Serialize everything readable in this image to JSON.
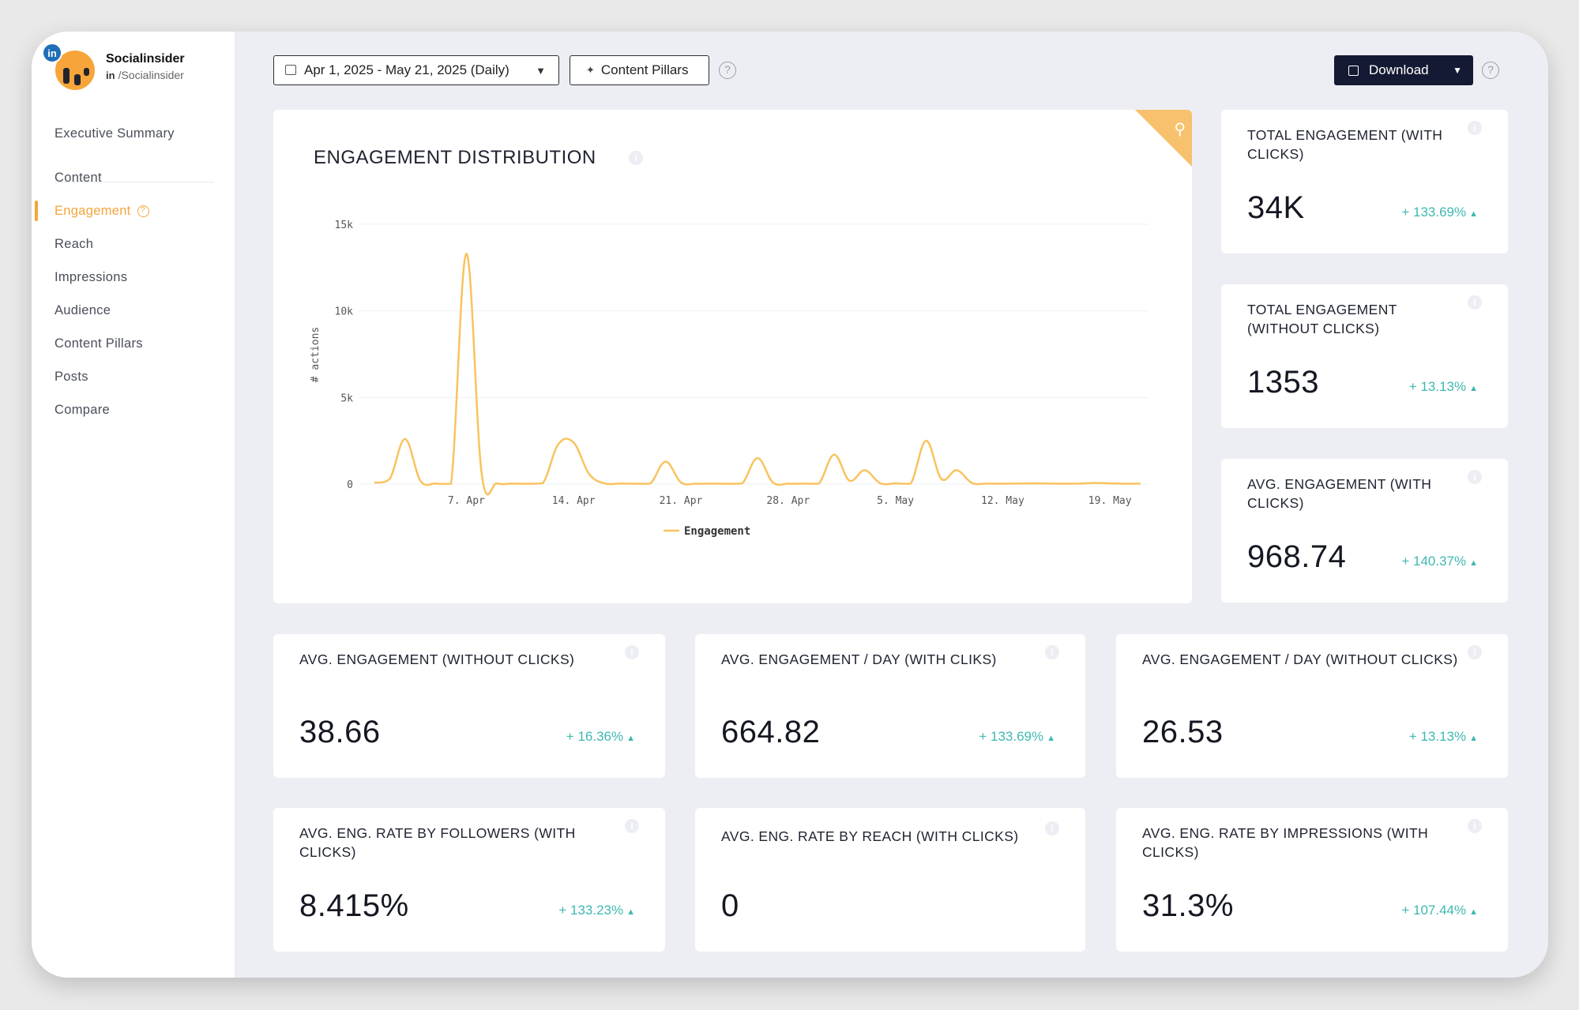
{
  "brand": {
    "name": "Socialinsider",
    "network_badge": "in",
    "handle_prefix": "in",
    "handle": "/Socialinsider"
  },
  "nav": {
    "items": [
      {
        "label": "Executive Summary"
      },
      {
        "label": "Content"
      },
      {
        "label": "Engagement",
        "help": "?"
      },
      {
        "label": "Reach"
      },
      {
        "label": "Impressions"
      },
      {
        "label": "Audience"
      },
      {
        "label": "Content Pillars"
      },
      {
        "label": "Posts"
      },
      {
        "label": "Compare"
      }
    ],
    "active": "Engagement"
  },
  "toolbar": {
    "date_range": "Apr 1, 2025 - May 21, 2025 (Daily)",
    "pillars_label": "Content Pillars",
    "download_label": "Download",
    "help": "?"
  },
  "chart": {
    "title": "ENGAGEMENT DISTRIBUTION",
    "info": "i"
  },
  "chart_data": {
    "type": "line",
    "title": "ENGAGEMENT DISTRIBUTION",
    "xlabel": "",
    "ylabel": "# actions",
    "ylim": [
      0,
      15000
    ],
    "y_ticks": [
      "0",
      "5k",
      "10k",
      "15k"
    ],
    "x_ticks": [
      "7. Apr",
      "14. Apr",
      "21. Apr",
      "28. Apr",
      "5. May",
      "12. May",
      "19. May"
    ],
    "legend": "bottom",
    "series": [
      {
        "name": "Engagement",
        "color": "#f9c35f",
        "x": [
          1,
          2,
          3,
          4,
          5,
          6,
          7,
          8,
          9,
          10,
          11,
          12,
          13,
          14,
          15,
          16,
          17,
          18,
          19,
          20,
          21,
          22,
          23,
          24,
          25,
          26,
          27,
          28,
          29,
          30,
          31,
          32,
          33,
          34,
          35,
          36,
          37,
          38,
          39,
          40,
          41,
          42,
          43,
          44,
          45,
          46,
          47,
          48,
          49,
          50,
          51
        ],
        "values": [
          80,
          300,
          2600,
          200,
          30,
          20,
          13300,
          600,
          40,
          30,
          20,
          60,
          2300,
          2400,
          600,
          40,
          30,
          20,
          30,
          1300,
          100,
          20,
          30,
          20,
          40,
          1500,
          100,
          20,
          30,
          30,
          1700,
          200,
          800,
          50,
          40,
          30,
          2500,
          300,
          800,
          60,
          30,
          20,
          30,
          40,
          30,
          20,
          30,
          60,
          40,
          20,
          30
        ]
      }
    ]
  },
  "stats": [
    {
      "label": "TOTAL ENGAGEMENT (WITH CLICKS)",
      "value": "34K",
      "change": "+ 133.69%"
    },
    {
      "label": "TOTAL ENGAGEMENT (WITHOUT CLICKS)",
      "value": "1353",
      "change": "+ 13.13%"
    },
    {
      "label": "AVG. ENGAGEMENT (WITH CLICKS)",
      "value": "968.74",
      "change": "+ 140.37%"
    },
    {
      "label": "AVG. ENGAGEMENT (WITHOUT CLICKS)",
      "value": "38.66",
      "change": "+ 16.36%"
    },
    {
      "label": "AVG. ENGAGEMENT / DAY (WITH CLIKS)",
      "value": "664.82",
      "change": "+ 133.69%"
    },
    {
      "label": "AVG. ENGAGEMENT / DAY (WITHOUT CLICKS)",
      "value": "26.53",
      "change": "+ 13.13%"
    },
    {
      "label": "AVG. ENG. RATE BY FOLLOWERS (WITH CLICKS)",
      "value": "8.415%",
      "change": "+ 133.23%"
    },
    {
      "label": "AVG. ENG. RATE BY REACH (WITH CLICKS)",
      "value": "0",
      "change": ""
    },
    {
      "label": "AVG. ENG. RATE BY IMPRESSIONS (WITH CLICKS)",
      "value": "31.3%",
      "change": "+ 107.44%"
    }
  ],
  "colors": {
    "accent": "#f4a63a",
    "positive": "#3fb8b0",
    "line": "#f9c35f",
    "dark_button": "#141a33"
  }
}
